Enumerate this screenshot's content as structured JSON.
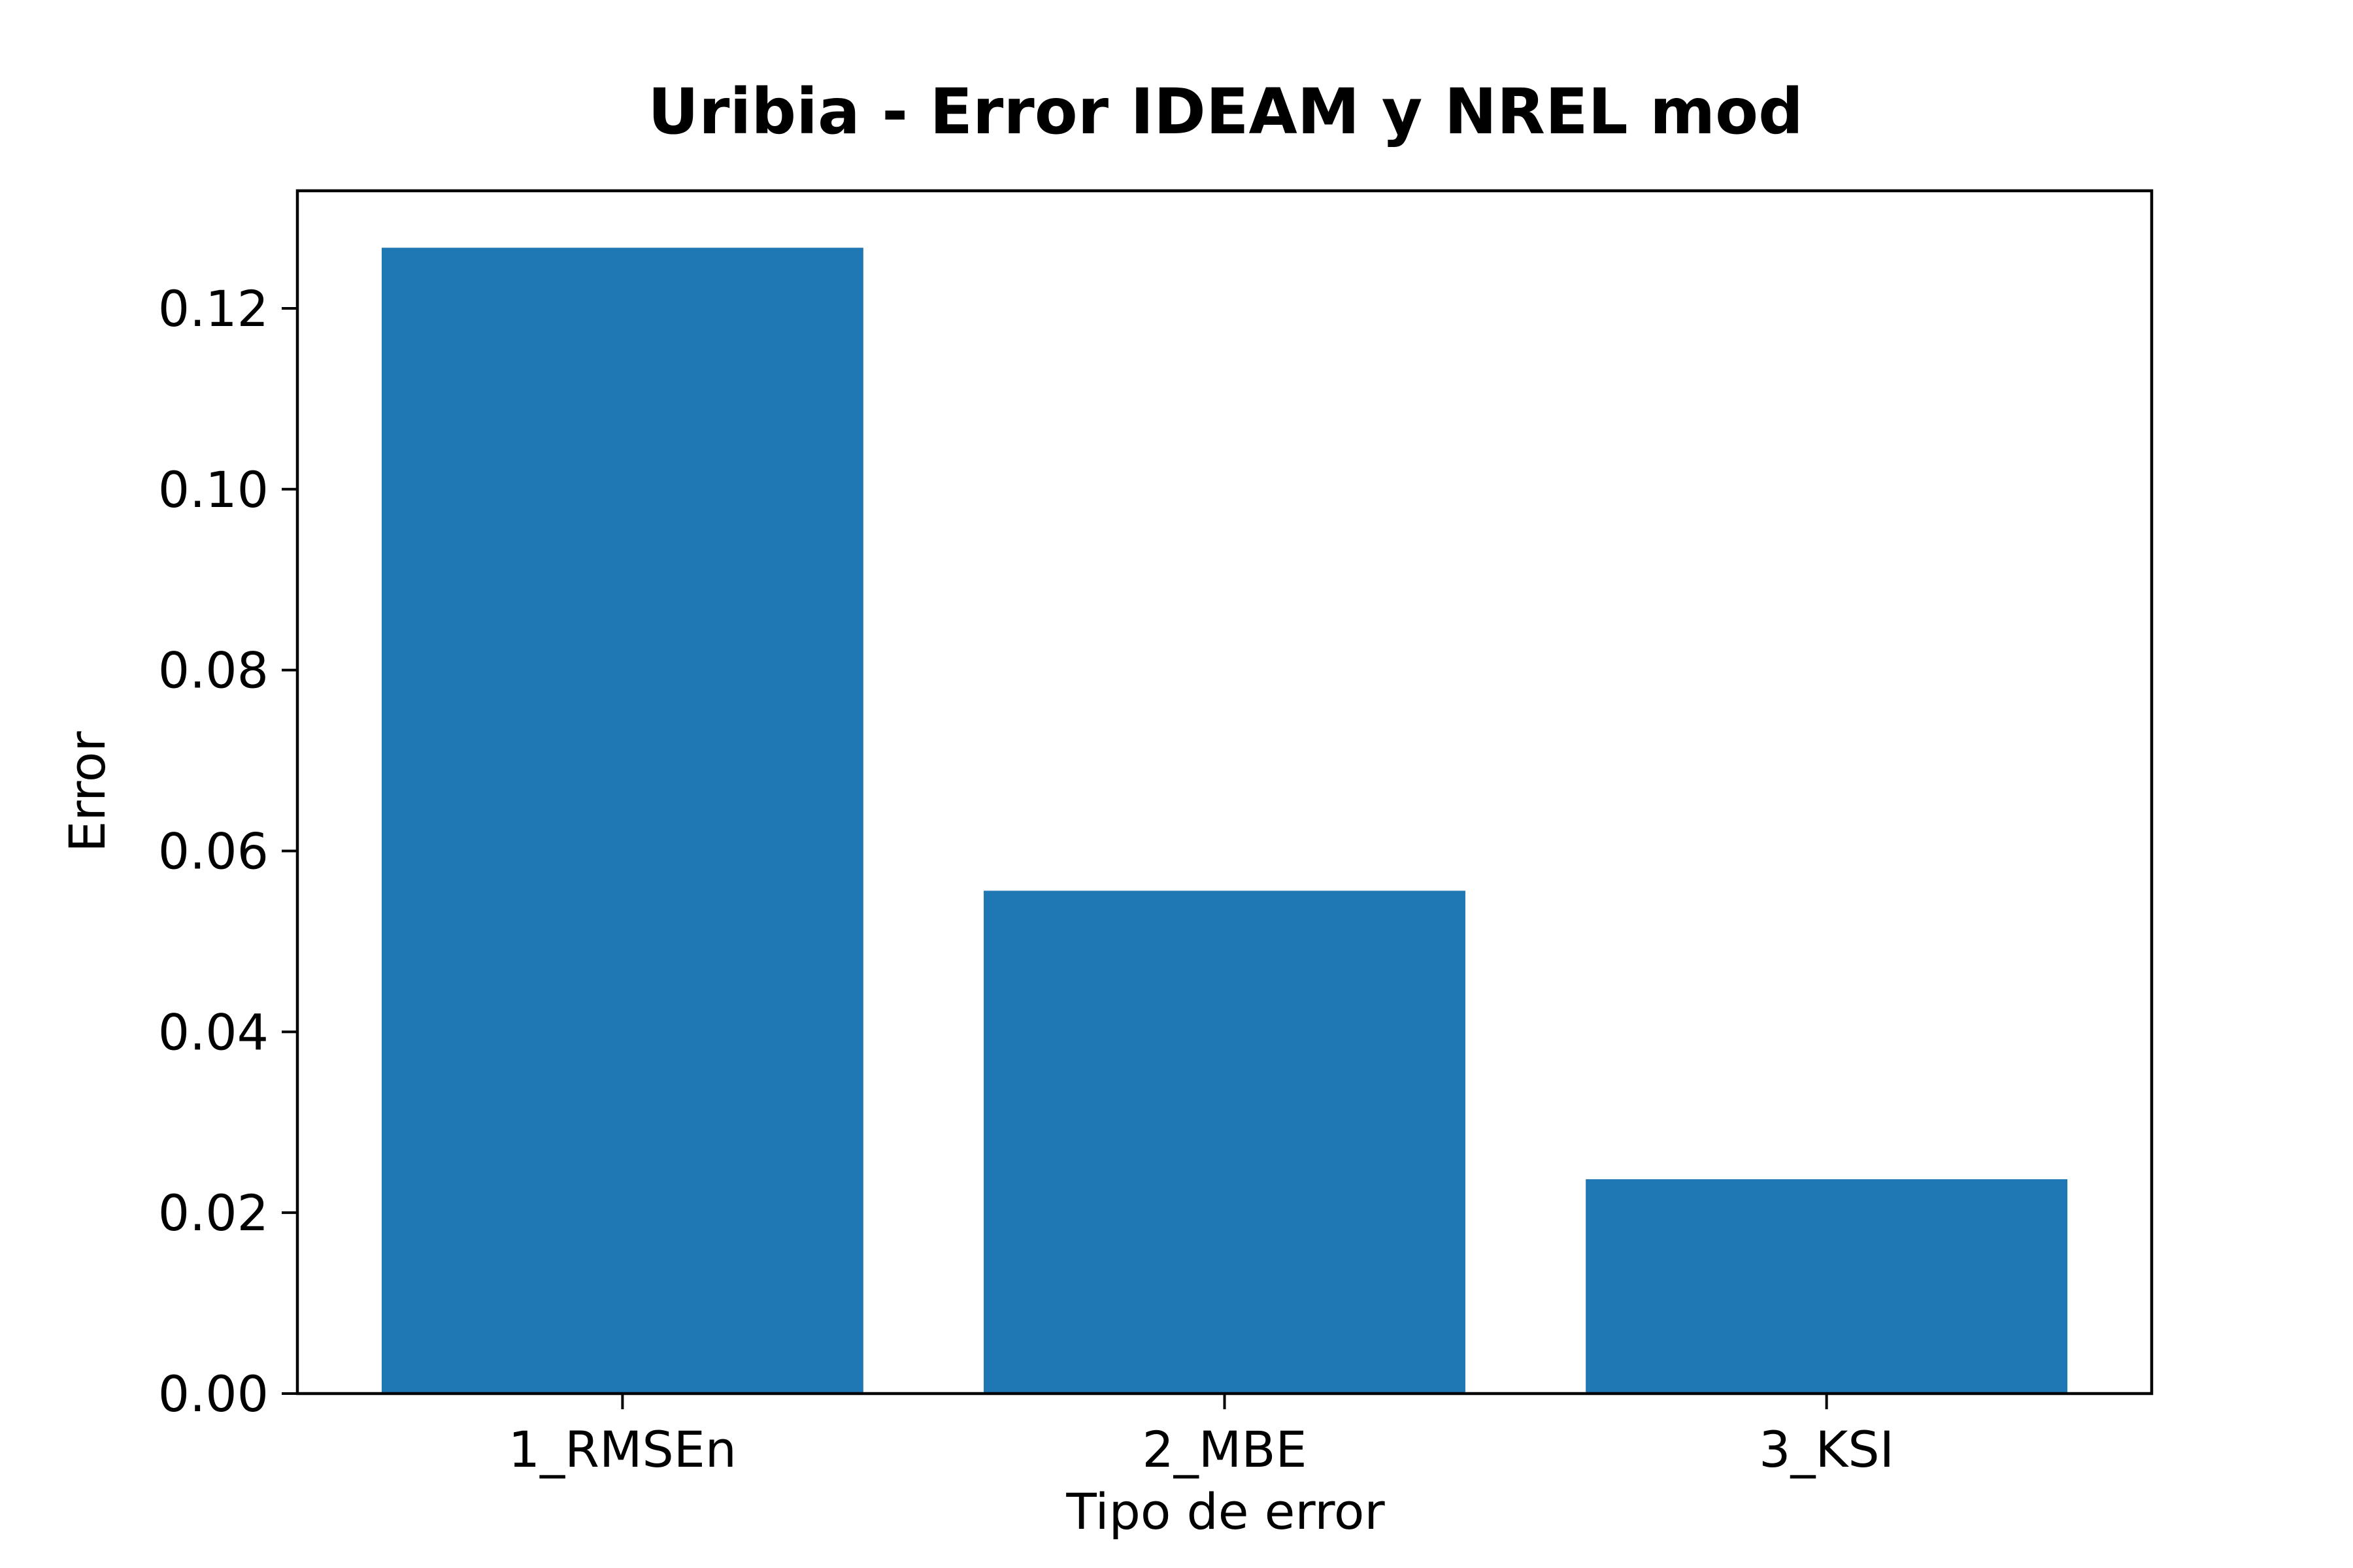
{
  "chart_data": {
    "type": "bar",
    "title": "Uribia - Error IDEAM y NREL mod",
    "xlabel": "Tipo de error",
    "ylabel": "Error",
    "categories": [
      "1_RMSEn",
      "2_MBE",
      "3_KSI"
    ],
    "values": [
      0.1267,
      0.0556,
      0.0237
    ],
    "ylim": [
      0,
      0.133
    ],
    "yticks": [
      0.0,
      0.02,
      0.04,
      0.06,
      0.08,
      0.1,
      0.12
    ],
    "ytick_labels": [
      "0.00",
      "0.02",
      "0.04",
      "0.06",
      "0.08",
      "0.10",
      "0.12"
    ],
    "bar_color": "#1f77b4",
    "grid": false,
    "legend": "none"
  }
}
